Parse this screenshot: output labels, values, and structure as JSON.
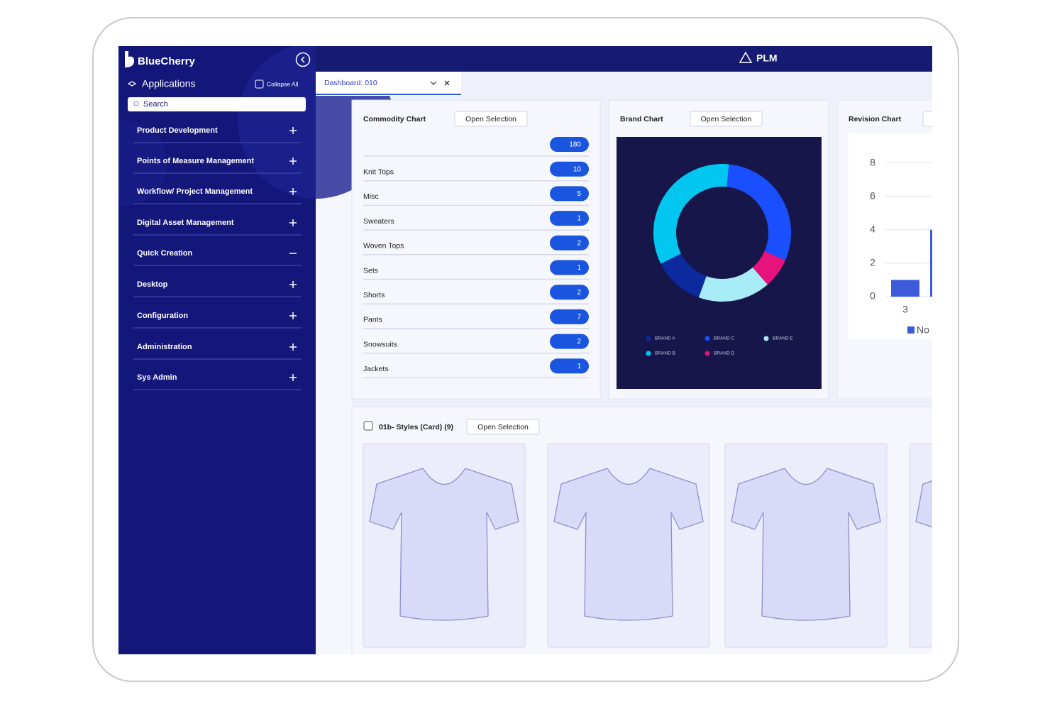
{
  "sidebar": {
    "brand": "BlueCherry",
    "section": "Applications",
    "collapse": "Collapse All",
    "search_placeholder": "Search",
    "items": [
      {
        "label": "Product Development",
        "expanded": false
      },
      {
        "label": "Points of Measure Management",
        "expanded": false
      },
      {
        "label": "Workflow/ Project Management",
        "expanded": false
      },
      {
        "label": "Digital Asset Management",
        "expanded": false
      },
      {
        "label": "Quick Creation",
        "expanded": true
      },
      {
        "label": "Desktop",
        "expanded": false
      },
      {
        "label": "Configuration",
        "expanded": false
      },
      {
        "label": "Administration",
        "expanded": false
      },
      {
        "label": "Sys Admin",
        "expanded": false
      }
    ]
  },
  "header": {
    "title": "PLM"
  },
  "tab": {
    "label": "Dashboard: 010"
  },
  "commodity_chart": {
    "title": "Commodity Chart",
    "button": "Open Selection",
    "rows": [
      {
        "label": null,
        "value": 180
      },
      {
        "label": "Knit Tops",
        "value": 10
      },
      {
        "label": "Misc",
        "value": 5
      },
      {
        "label": "Sweaters",
        "value": 1
      },
      {
        "label": "Woven Tops",
        "value": 2
      },
      {
        "label": "Sets",
        "value": 1
      },
      {
        "label": "Shorts",
        "value": 2
      },
      {
        "label": "Pants",
        "value": 7
      },
      {
        "label": "Snowsuits",
        "value": 2
      },
      {
        "label": "Jackets",
        "value": 1
      }
    ]
  },
  "brand_chart": {
    "type": "pie",
    "title": "Brand Chart",
    "button": "Open Selection",
    "series": [
      {
        "name": "BRAND A",
        "color": "#0a2a9e",
        "value": 12
      },
      {
        "name": "BRAND B",
        "color": "#00c6f0",
        "value": 34
      },
      {
        "name": "BRAND C",
        "color": "#1a4fff",
        "value": 30
      },
      {
        "name": "BRAND D",
        "color": "#e8127c",
        "value": 7
      },
      {
        "name": "BRAND E",
        "color": "#a8ecf8",
        "value": 17
      }
    ]
  },
  "revision_chart": {
    "type": "bar",
    "title": "Revision Chart",
    "categories": [
      "3",
      null
    ],
    "series": [
      {
        "name": "No",
        "color": "#3b5bdb",
        "values": [
          1,
          4
        ]
      }
    ],
    "ylim": [
      0,
      9
    ],
    "yticks": [
      0,
      2,
      4,
      6,
      8
    ],
    "grid": true
  },
  "styles": {
    "title": "01b- Styles (Card) (9)",
    "button": "Open Selection"
  }
}
